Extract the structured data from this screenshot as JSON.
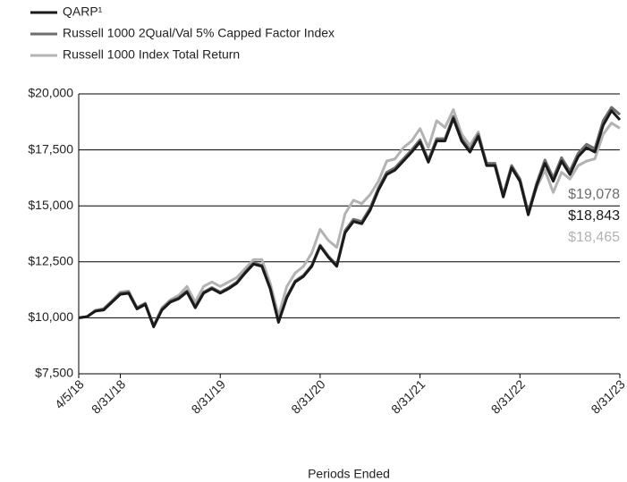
{
  "chart_data": {
    "type": "line",
    "x_label": "Periods Ended",
    "categories": [
      "4/5/18",
      null,
      null,
      null,
      null,
      "8/31/18",
      null,
      null,
      null,
      null,
      null,
      null,
      null,
      null,
      null,
      null,
      null,
      "8/31/19",
      null,
      null,
      null,
      null,
      null,
      null,
      null,
      null,
      null,
      null,
      null,
      "8/31/20",
      null,
      null,
      null,
      null,
      null,
      null,
      null,
      null,
      null,
      null,
      null,
      "8/31/21",
      null,
      null,
      null,
      null,
      null,
      null,
      null,
      null,
      null,
      null,
      null,
      "8/31/22",
      null,
      null,
      null,
      null,
      null,
      null,
      null,
      null,
      null,
      null,
      null,
      "8/31/23"
    ],
    "series": [
      {
        "name": "QARP¹",
        "color": "#1a1a1a",
        "end_label": "$18,843",
        "values": [
          10000,
          10050,
          10300,
          10350,
          10700,
          11050,
          11100,
          10400,
          10600,
          9600,
          10350,
          10700,
          10850,
          11150,
          10450,
          11100,
          11300,
          11100,
          11300,
          11550,
          12000,
          12400,
          12300,
          11300,
          9800,
          10900,
          11600,
          11850,
          12300,
          13200,
          12700,
          12300,
          13800,
          14300,
          14200,
          14800,
          15700,
          16400,
          16600,
          17000,
          17400,
          17850,
          16950,
          17900,
          17900,
          18900,
          17900,
          17400,
          18100,
          16800,
          16800,
          15400,
          16700,
          16100,
          14600,
          15900,
          16900,
          16100,
          17000,
          16400,
          17200,
          17600,
          17400,
          18600,
          19250,
          18843
        ]
      },
      {
        "name": "Russell 1000 2Qual/Val 5% Capped Factor Index",
        "color": "#6e6e6e",
        "end_label": "$19,078",
        "values": [
          10000,
          10050,
          10300,
          10400,
          10750,
          11100,
          11150,
          10450,
          10650,
          9650,
          10400,
          10750,
          10900,
          11200,
          10500,
          11150,
          11350,
          11150,
          11350,
          11600,
          12050,
          12450,
          12350,
          11350,
          9850,
          10950,
          11650,
          11900,
          12350,
          13250,
          12750,
          12350,
          13900,
          14400,
          14300,
          14900,
          15800,
          16500,
          16700,
          17100,
          17500,
          17950,
          17050,
          18000,
          18000,
          19000,
          18000,
          17500,
          18200,
          16900,
          16900,
          15500,
          16800,
          16200,
          14700,
          16000,
          17050,
          16250,
          17150,
          16550,
          17350,
          17750,
          17550,
          18800,
          19400,
          19078
        ]
      },
      {
        "name": "Russell 1000 Index Total Return",
        "color": "#b3b3b3",
        "end_label": "$18,465",
        "values": [
          10000,
          10050,
          10350,
          10400,
          10750,
          11150,
          11200,
          10400,
          10600,
          9650,
          10450,
          10800,
          11000,
          11400,
          10700,
          11400,
          11600,
          11400,
          11600,
          11800,
          12200,
          12600,
          12600,
          11550,
          10100,
          11400,
          12000,
          12300,
          12900,
          13950,
          13450,
          13150,
          14650,
          15250,
          15100,
          15500,
          16100,
          17000,
          17100,
          17600,
          17900,
          18450,
          17600,
          18800,
          18500,
          19300,
          18200,
          17700,
          18300,
          16800,
          16800,
          15400,
          16800,
          16100,
          14700,
          15800,
          16600,
          15600,
          16500,
          16200,
          16800,
          17000,
          17100,
          18200,
          18700,
          18465
        ]
      }
    ],
    "ylim": [
      7500,
      20000
    ],
    "yticks": [
      {
        "value": 7500,
        "label": "$7,500"
      },
      {
        "value": 10000,
        "label": "$10,000"
      },
      {
        "value": 12500,
        "label": "$12,500"
      },
      {
        "value": 15000,
        "label": "$15,000"
      },
      {
        "value": 17500,
        "label": "$17,500"
      },
      {
        "value": 20000,
        "label": "$20,000"
      }
    ],
    "grid": true,
    "legend": "top-left"
  }
}
